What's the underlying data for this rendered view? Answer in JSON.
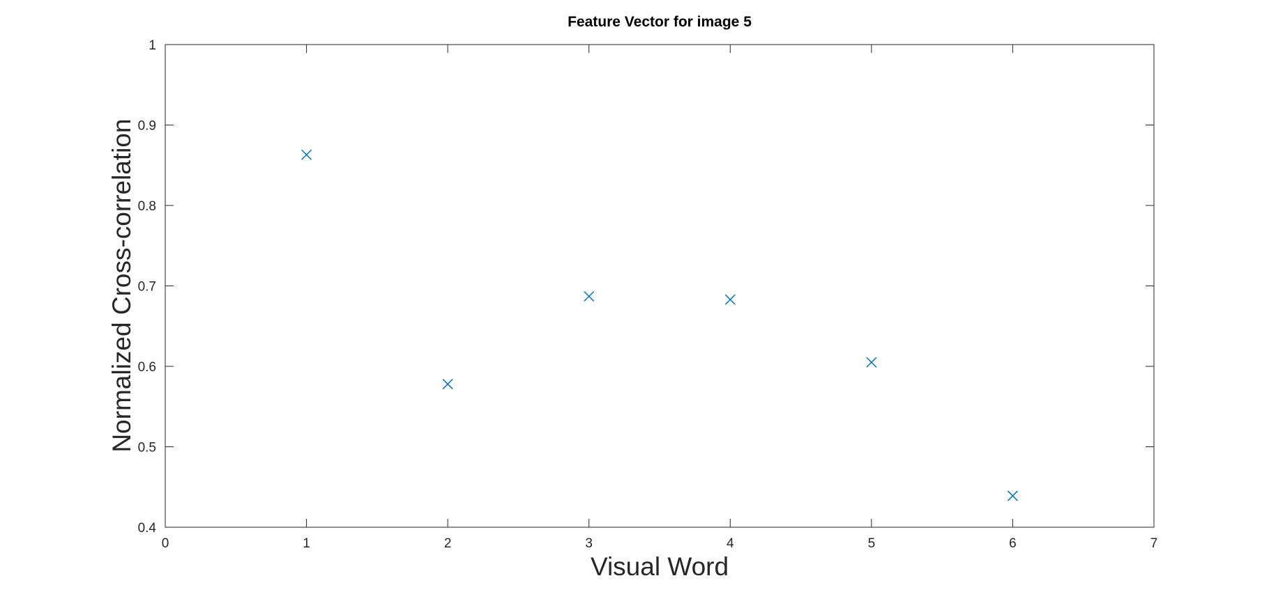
{
  "chart_data": {
    "type": "scatter",
    "title": "Feature Vector for image 5",
    "xlabel": "Visual Word",
    "ylabel": "Normalized Cross-correlation",
    "xlim": [
      0,
      7
    ],
    "ylim": [
      0.4,
      1
    ],
    "xticks": [
      "0",
      "1",
      "2",
      "3",
      "4",
      "5",
      "6",
      "7"
    ],
    "yticks": [
      "0.4",
      "0.5",
      "0.6",
      "0.7",
      "0.8",
      "0.9",
      "1"
    ],
    "grid": false,
    "legend": false,
    "marker": "x",
    "series": [
      {
        "color": "#0072BD",
        "x": [
          1,
          2,
          3,
          4,
          5,
          6
        ],
        "y": [
          0.863,
          0.578,
          0.687,
          0.683,
          0.605,
          0.439
        ]
      }
    ]
  }
}
